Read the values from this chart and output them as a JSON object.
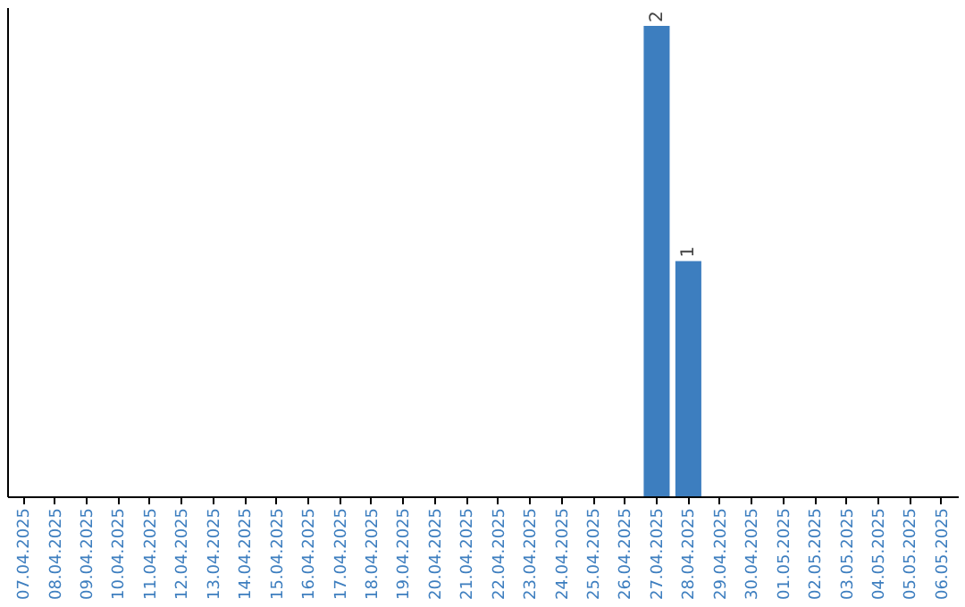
{
  "chart_data": {
    "type": "bar",
    "categories": [
      "07.04.2025",
      "08.04.2025",
      "09.04.2025",
      "10.04.2025",
      "11.04.2025",
      "12.04.2025",
      "13.04.2025",
      "14.04.2025",
      "15.04.2025",
      "16.04.2025",
      "17.04.2025",
      "18.04.2025",
      "19.04.2025",
      "20.04.2025",
      "21.04.2025",
      "22.04.2025",
      "23.04.2025",
      "24.04.2025",
      "25.04.2025",
      "26.04.2025",
      "27.04.2025",
      "28.04.2025",
      "29.04.2025",
      "30.04.2025",
      "01.05.2025",
      "02.05.2025",
      "03.05.2025",
      "04.05.2025",
      "05.05.2025",
      "06.05.2025"
    ],
    "values": [
      null,
      null,
      null,
      null,
      null,
      null,
      null,
      null,
      null,
      null,
      null,
      null,
      null,
      null,
      null,
      null,
      null,
      null,
      null,
      null,
      2,
      1,
      null,
      null,
      null,
      null,
      null,
      null,
      null,
      null
    ],
    "data_labels": true,
    "color": "#3d7ebf",
    "tick_labels": "x",
    "grid": false
  }
}
